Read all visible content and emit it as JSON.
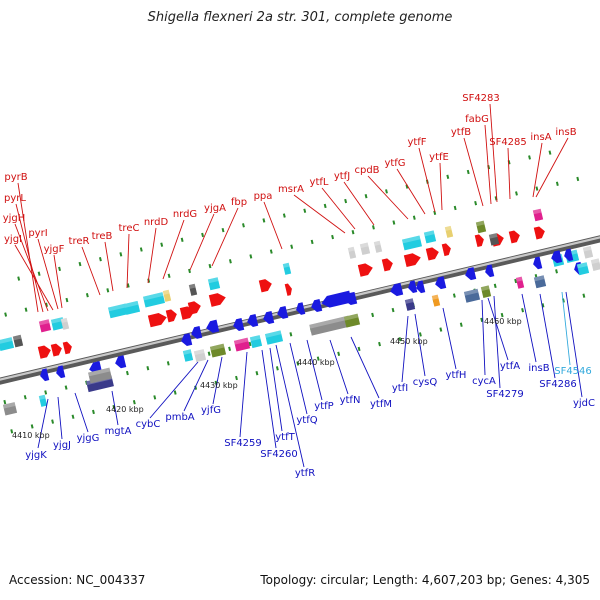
{
  "title": "Shigella flexneri 2a str. 301, complete genome",
  "footer": {
    "accession": "Accession: NC_004337",
    "summary": "Topology: circular; Length: 4,607,203 bp; Genes: 4,305"
  },
  "colors": {
    "forward_label": "#d01010",
    "reverse_label": "#1010c0",
    "highlight_label": "#33aadd",
    "backbone": "#8a8a8a",
    "tick": "#2a8a2a"
  },
  "scale_labels": [
    "4410 kbp",
    "4420 kbp",
    "4430 kbp",
    "4440 kbp",
    "4450 kbp",
    "4460 kbp"
  ],
  "forward_labels": [
    "pyrB",
    "pyrL",
    "yjgH",
    "yjgI",
    "pyrI",
    "yjgF",
    "treR",
    "treB",
    "treC",
    "nrdD",
    "nrdG",
    "yjgA",
    "fbp",
    "ppa",
    "msrA",
    "ytfL",
    "ytfJ",
    "cpdB",
    "ytfG",
    "ytfF",
    "ytfE",
    "ytfB",
    "fabG",
    "SF4283",
    "SF4285",
    "insA",
    "insB"
  ],
  "reverse_labels": [
    "yjgK",
    "yjgJ",
    "yjgG",
    "mgtA",
    "cybC",
    "pmbA",
    "yjfG",
    "SF4259",
    "SF4260",
    "ytfT",
    "ytfR",
    "ytfQ",
    "ytfP",
    "ytfN",
    "ytfM",
    "ytfI",
    "cysQ",
    "ytfH",
    "cycA",
    "ytfA",
    "SF4279",
    "insB",
    "SF4286",
    "SF4546",
    "yjdC"
  ],
  "highlight_labels": [
    "SF4546"
  ]
}
